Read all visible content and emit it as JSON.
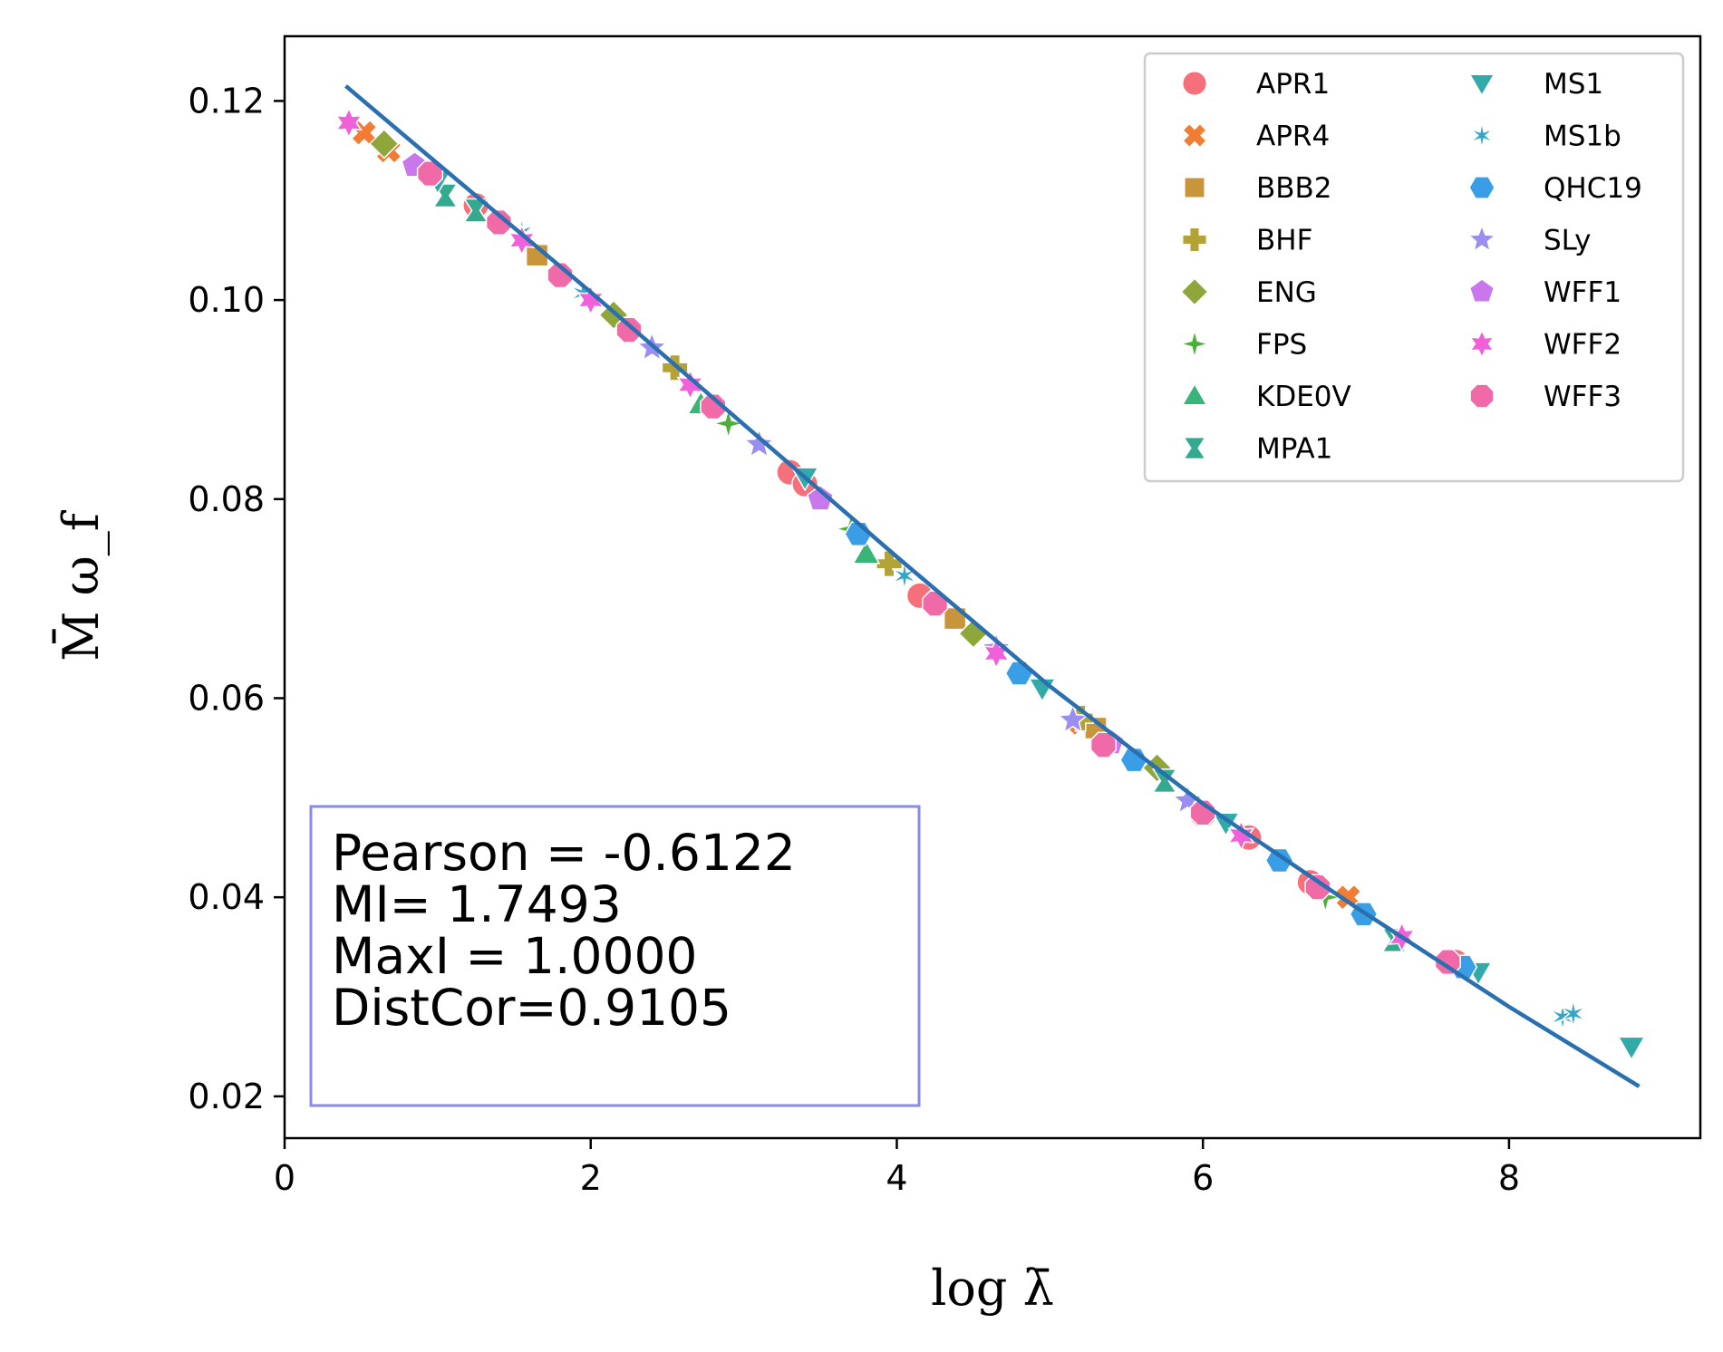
{
  "chart_data": {
    "type": "scatter",
    "title": "",
    "xlabel": "log λ̄",
    "ylabel": "M̄ ω_f",
    "xlim": [
      0,
      9.25
    ],
    "ylim": [
      0.0158,
      0.1265
    ],
    "xticks": [
      0,
      2,
      4,
      6,
      8
    ],
    "yticks": [
      0.02,
      0.04,
      0.06,
      0.08,
      0.1,
      0.12
    ],
    "xtick_labels": [
      "0",
      "2",
      "4",
      "6",
      "8"
    ],
    "ytick_labels": [
      "0.02",
      "0.04",
      "0.06",
      "0.08",
      "0.10",
      "0.12"
    ],
    "legend_position": "top-right",
    "legend_columns": 2,
    "grid": false,
    "fit_line": {
      "color": "#2a6fb0",
      "x": [
        0.4,
        1.0,
        2.0,
        3.0,
        4.0,
        5.0,
        6.0,
        7.0,
        8.0,
        8.85
      ],
      "y": [
        0.1215,
        0.1137,
        0.1008,
        0.0875,
        0.0742,
        0.0612,
        0.0494,
        0.039,
        0.029,
        0.021
      ]
    },
    "stats": {
      "lines": [
        "Pearson = -0.6122",
        "MI= 1.7493",
        "MaxI = 1.0000",
        "DistCor=0.9105"
      ],
      "box_color": "#8888ee"
    },
    "series": [
      {
        "name": "APR1",
        "marker": "circle",
        "color": "#f5707a",
        "x": [
          1.25,
          3.3,
          3.4,
          4.15,
          6.3,
          6.7,
          7.65
        ],
        "y": [
          0.1095,
          0.0827,
          0.0815,
          0.0703,
          0.046,
          0.0415,
          0.0335
        ]
      },
      {
        "name": "APR4",
        "marker": "x",
        "color": "#f07d33",
        "x": [
          0.52,
          0.68,
          5.2,
          6.0,
          6.95
        ],
        "y": [
          0.1168,
          0.115,
          0.0575,
          0.0483,
          0.04
        ]
      },
      {
        "name": "BBB2",
        "marker": "square",
        "color": "#c8953a",
        "x": [
          1.65,
          4.38,
          5.3
        ],
        "y": [
          0.1045,
          0.068,
          0.057
        ]
      },
      {
        "name": "BHF",
        "marker": "plus",
        "color": "#b3a235",
        "x": [
          2.55,
          3.95,
          5.2
        ],
        "y": [
          0.0932,
          0.0735,
          0.058
        ]
      },
      {
        "name": "ENG",
        "marker": "diamond",
        "color": "#8ea63a",
        "x": [
          0.65,
          2.15,
          4.5,
          5.7
        ],
        "y": [
          0.1157,
          0.0985,
          0.0665,
          0.053
        ]
      },
      {
        "name": "FPS",
        "marker": "plus-star",
        "color": "#4caf3a",
        "x": [
          2.9,
          3.7,
          6.8
        ],
        "y": [
          0.0876,
          0.077,
          0.04
        ]
      },
      {
        "name": "KDE0V",
        "marker": "triangle-up",
        "color": "#3ab57a",
        "x": [
          2.72,
          3.8
        ],
        "y": [
          0.0895,
          0.0745
        ]
      },
      {
        "name": "MPA1",
        "marker": "hourglass",
        "color": "#33aa8f",
        "x": [
          1.05,
          1.25,
          5.75,
          7.25
        ],
        "y": [
          0.1105,
          0.109,
          0.0517,
          0.0357
        ]
      },
      {
        "name": "MS1",
        "marker": "triangle-down",
        "color": "#33aaaa",
        "x": [
          1.0,
          3.4,
          4.95,
          6.15,
          7.8,
          8.8
        ],
        "y": [
          0.112,
          0.0822,
          0.061,
          0.0475,
          0.0325,
          0.025
        ]
      },
      {
        "name": "MS1b",
        "marker": "asterisk",
        "color": "#33a5c5",
        "x": [
          1.55,
          1.95,
          4.05,
          8.35,
          8.42
        ],
        "y": [
          0.1068,
          0.1007,
          0.0723,
          0.028,
          0.0283
        ]
      },
      {
        "name": "QHC19",
        "marker": "hexagon",
        "color": "#3a9ee6",
        "x": [
          3.75,
          4.8,
          5.55,
          6.5,
          7.05,
          7.7
        ],
        "y": [
          0.0765,
          0.0625,
          0.0538,
          0.0437,
          0.0383,
          0.033
        ]
      },
      {
        "name": "SLy",
        "marker": "star",
        "color": "#9a8ff0",
        "x": [
          2.4,
          3.1,
          4.65,
          5.15,
          5.9
        ],
        "y": [
          0.0952,
          0.0855,
          0.065,
          0.0578,
          0.0497
        ]
      },
      {
        "name": "WFF1",
        "marker": "pentagon",
        "color": "#c878ec",
        "x": [
          0.85,
          3.5,
          5.4
        ],
        "y": [
          0.1135,
          0.08,
          0.0555
        ]
      },
      {
        "name": "WFF2",
        "marker": "star6",
        "color": "#f060d8",
        "x": [
          0.42,
          1.55,
          2.0,
          2.65,
          4.65,
          6.25,
          7.3
        ],
        "y": [
          0.1178,
          0.106,
          0.1,
          0.0915,
          0.0645,
          0.0462,
          0.036
        ]
      },
      {
        "name": "WFF3",
        "marker": "octagon",
        "color": "#f06aa8",
        "x": [
          0.95,
          1.4,
          1.8,
          2.25,
          2.8,
          4.25,
          5.35,
          6.0,
          6.75,
          7.6
        ],
        "y": [
          0.1127,
          0.1078,
          0.1025,
          0.097,
          0.0893,
          0.0695,
          0.0553,
          0.0485,
          0.041,
          0.0335
        ]
      }
    ]
  }
}
